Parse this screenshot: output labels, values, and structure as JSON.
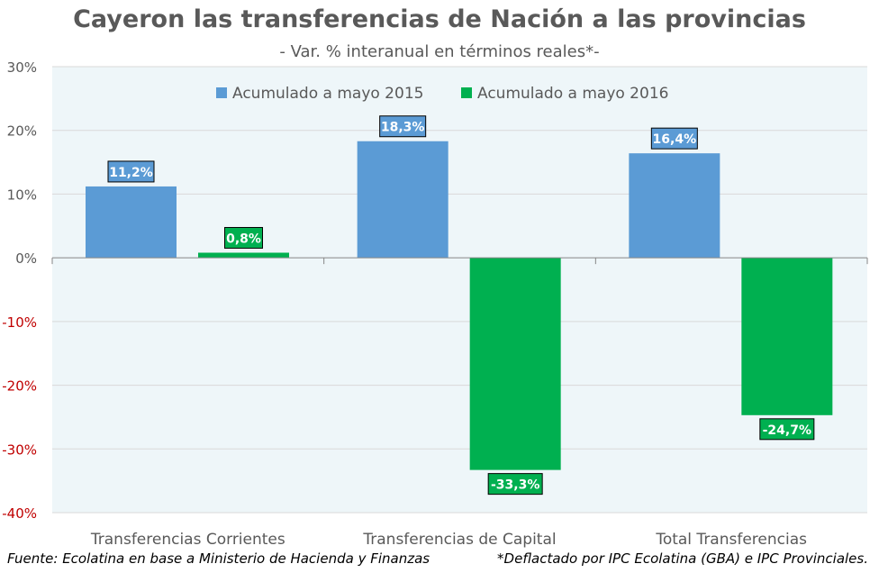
{
  "chart_data": {
    "type": "bar",
    "title": "Cayeron las transferencias de Nación a las provincias",
    "subtitle": "- Var. % interanual en términos reales*-",
    "categories": [
      "Transferencias Corrientes",
      "Transferencias de Capital",
      "Total Transferencias"
    ],
    "series": [
      {
        "name": "Acumulado a mayo 2015",
        "values": [
          11.2,
          18.3,
          16.4
        ],
        "labels": [
          "11,2%",
          "18,3%",
          "16,4%"
        ],
        "color": "#5B9BD5"
      },
      {
        "name": "Acumulado a mayo 2016",
        "values": [
          0.8,
          -33.3,
          -24.7
        ],
        "labels": [
          "0,8%",
          "-33,3%",
          "-24,7%"
        ],
        "color": "#00B050"
      }
    ],
    "ylim": [
      -40,
      30
    ],
    "yticks": [
      30,
      20,
      10,
      0,
      -10,
      -20,
      -30,
      -40
    ],
    "ytick_labels": [
      "30%",
      "20%",
      "10%",
      "0%",
      "-10%",
      "-20%",
      "-30%",
      "-40%"
    ],
    "negative_tick_color": "#C00000",
    "grid": true,
    "legend": "top",
    "xlabel": "",
    "ylabel": ""
  },
  "footer": {
    "source": "Fuente: Ecolatina en base a Ministerio de Hacienda y Finanzas",
    "note": "*Deflactado por IPC Ecolatina (GBA) e IPC Provinciales."
  }
}
